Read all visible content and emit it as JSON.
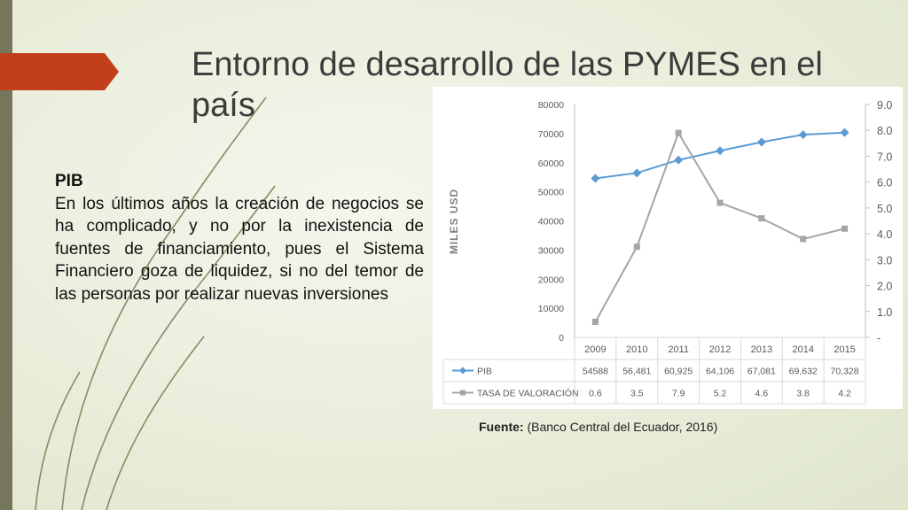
{
  "slide": {
    "title": "Entorno de desarrollo de las PYMES en el país",
    "text_heading": "PIB",
    "text_body": "En los últimos años la creación de negocios se ha complicado, y no por la inexistencia de fuentes de financiamiento, pues el Sistema Financiero goza de liquidez, si no del temor de las personas por realizar nuevas inversiones",
    "source_label": "Fuente:",
    "source_text": "(Banco Central del Ecuador, 2016)"
  },
  "colors": {
    "accent_red": "#c23f1c",
    "pib_series": "#5b9bd5",
    "tasa_series": "#a5a5a5"
  },
  "chart_data": {
    "type": "line",
    "ylabel": "MILES USD",
    "x": [
      "2009",
      "2010",
      "2011",
      "2012",
      "2013",
      "2014",
      "2015"
    ],
    "y_left_ticks": [
      "0",
      "10000",
      "20000",
      "30000",
      "40000",
      "50000",
      "60000",
      "70000",
      "80000"
    ],
    "y_left_range": [
      0,
      80000
    ],
    "y_right_ticks": [
      "-",
      "1.0",
      "2.0",
      "3.0",
      "4.0",
      "5.0",
      "6.0",
      "7.0",
      "8.0",
      "9.0"
    ],
    "y_right_range": [
      0,
      9
    ],
    "grid": false,
    "legend": "data-table",
    "series": [
      {
        "name": "PIB",
        "axis": "left",
        "values": [
          54588,
          56481,
          60925,
          64106,
          67081,
          69632,
          70328
        ],
        "labels": [
          "54588",
          "56,481",
          "60,925",
          "64,106",
          "67,081",
          "69,632",
          "70,328"
        ]
      },
      {
        "name": "TASA DE VALORACIÓN",
        "axis": "right",
        "values": [
          0.6,
          3.5,
          7.9,
          5.2,
          4.6,
          3.8,
          4.2
        ],
        "labels": [
          "0.6",
          "3.5",
          "7.9",
          "5.2",
          "4.6",
          "3.8",
          "4.2"
        ]
      }
    ]
  }
}
